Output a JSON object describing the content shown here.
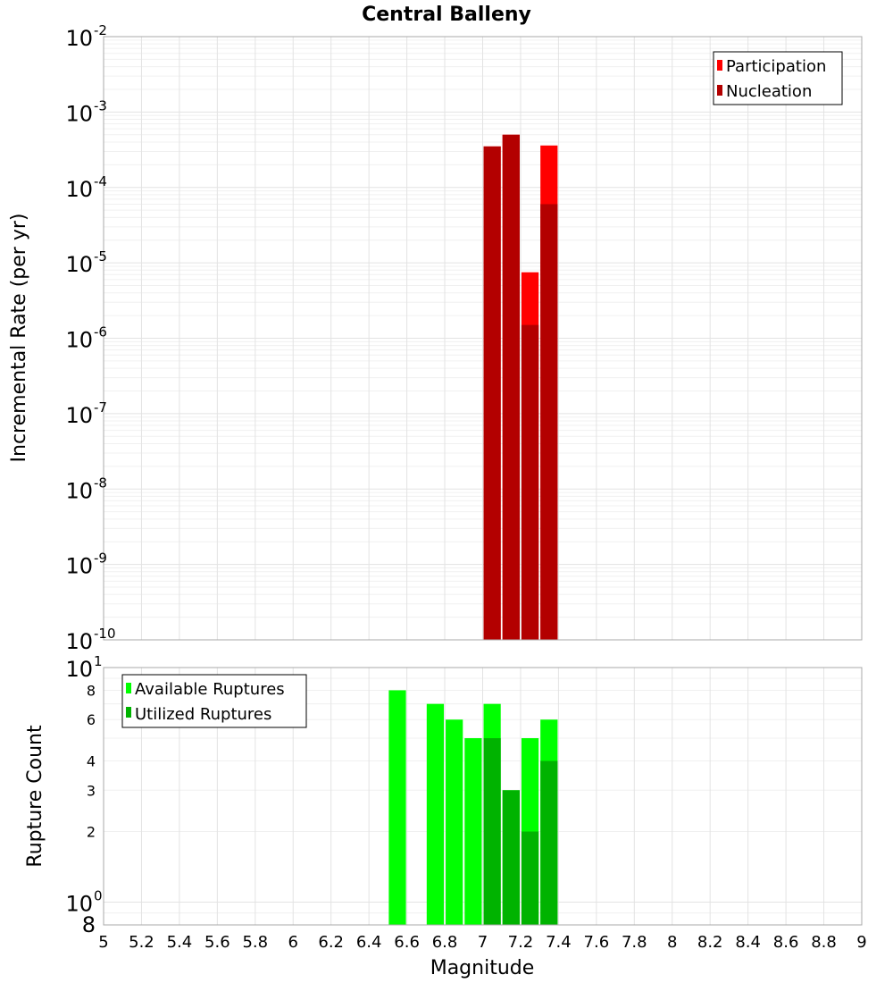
{
  "chart_data": [
    {
      "type": "bar",
      "title": "Central Balleny",
      "xlabel": "",
      "ylabel": "Incremental Rate (per yr)",
      "yscale": "log",
      "ylim": [
        1e-10,
        0.01
      ],
      "xlim": [
        5,
        9
      ],
      "bar_width": 0.1,
      "legend_position": "top-right",
      "y_ticks": [
        {
          "base": "10",
          "exp": "-2"
        },
        {
          "base": "10",
          "exp": "-3"
        },
        {
          "base": "10",
          "exp": "-4"
        },
        {
          "base": "10",
          "exp": "-5"
        },
        {
          "base": "10",
          "exp": "-6"
        },
        {
          "base": "10",
          "exp": "-7"
        },
        {
          "base": "10",
          "exp": "-8"
        },
        {
          "base": "10",
          "exp": "-9"
        },
        {
          "base": "10",
          "exp": "-10"
        }
      ],
      "series": [
        {
          "name": "Participation",
          "color": "#ff0000",
          "x": [
            7.05,
            7.15,
            7.25,
            7.35
          ],
          "values": [
            0.00035,
            0.0005,
            7.5e-06,
            0.00036
          ]
        },
        {
          "name": "Nucleation",
          "color": "#b30000",
          "x": [
            7.05,
            7.15,
            7.25,
            7.35
          ],
          "values": [
            0.00035,
            0.0005,
            1.5e-06,
            6e-05
          ]
        }
      ]
    },
    {
      "type": "bar",
      "title": "",
      "xlabel": "Magnitude",
      "ylabel": "Rupture Count",
      "yscale": "log",
      "ylim": [
        0.8,
        10
      ],
      "xlim": [
        5,
        9
      ],
      "bar_width": 0.1,
      "legend_position": "top-left",
      "x_ticks": [
        "5",
        "5.2",
        "5.4",
        "5.6",
        "5.8",
        "6",
        "6.2",
        "6.4",
        "6.6",
        "6.8",
        "7",
        "7.2",
        "7.4",
        "7.6",
        "7.8",
        "8",
        "8.2",
        "8.4",
        "8.6",
        "8.8",
        "9"
      ],
      "y_ticks_major": [
        {
          "base": "10",
          "exp": "1"
        },
        {
          "base": "10",
          "exp": "0"
        }
      ],
      "y_ticks_minor": [
        "8",
        "6",
        "4",
        "3",
        "2"
      ],
      "y_tick_bottom": "8",
      "series": [
        {
          "name": "Available Ruptures",
          "color": "#00ff00",
          "x": [
            6.55,
            6.75,
            6.85,
            6.95,
            7.05,
            7.15,
            7.25,
            7.35
          ],
          "values": [
            8,
            7,
            6,
            5,
            7,
            3,
            5,
            6
          ]
        },
        {
          "name": "Utilized Ruptures",
          "color": "#00b300",
          "x": [
            7.05,
            7.15,
            7.25,
            7.35
          ],
          "values": [
            5,
            3,
            2,
            4
          ]
        }
      ]
    }
  ]
}
